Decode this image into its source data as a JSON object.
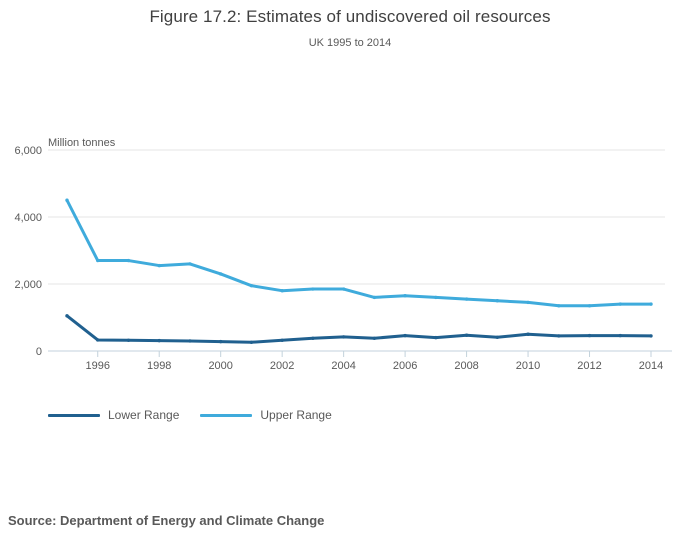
{
  "title": "Figure 17.2: Estimates of undiscovered oil resources",
  "subtitle": "UK 1995 to 2014",
  "source": "Source: Department of Energy and Climate Change",
  "legend": [
    {
      "label": "Lower Range",
      "color": "#20608f"
    },
    {
      "label": "Upper Range",
      "color": "#3fabdc"
    }
  ],
  "colors": {
    "lower_range_line": "#20608f",
    "upper_range_line": "#3fabdc",
    "gridline": "#e4e4e4",
    "axis_line": "#c3d2dc",
    "tick_text": "#595959"
  },
  "chart_data": {
    "type": "line",
    "title": "Figure 17.2: Estimates of undiscovered oil resources",
    "subtitle": "UK 1995 to 2014",
    "ylabel": "Million tonnes",
    "xlabel": "",
    "grid": true,
    "legend_position": "bottom",
    "ylim": [
      0,
      6000
    ],
    "yticks": [
      0,
      2000,
      4000,
      6000
    ],
    "ytick_labels": [
      "0",
      "2,000",
      "4,000",
      "6,000"
    ],
    "x": [
      1995,
      1996,
      1997,
      1998,
      1999,
      2000,
      2001,
      2002,
      2003,
      2004,
      2005,
      2006,
      2007,
      2008,
      2009,
      2010,
      2011,
      2012,
      2013,
      2014
    ],
    "xtick_labels": [
      "1996",
      "1998",
      "2000",
      "2002",
      "2004",
      "2006",
      "2008",
      "2010",
      "2012",
      "2014"
    ],
    "series": [
      {
        "name": "Lower Range",
        "color": "#20608f",
        "values": [
          1050,
          330,
          320,
          310,
          300,
          280,
          260,
          320,
          380,
          420,
          380,
          460,
          400,
          470,
          410,
          500,
          450,
          460,
          460,
          450
        ]
      },
      {
        "name": "Upper Range",
        "color": "#3fabdc",
        "values": [
          4500,
          2700,
          2700,
          2550,
          2600,
          2300,
          1950,
          1800,
          1850,
          1850,
          1600,
          1650,
          1600,
          1550,
          1500,
          1450,
          1350,
          1350,
          1400,
          1400
        ]
      }
    ]
  }
}
